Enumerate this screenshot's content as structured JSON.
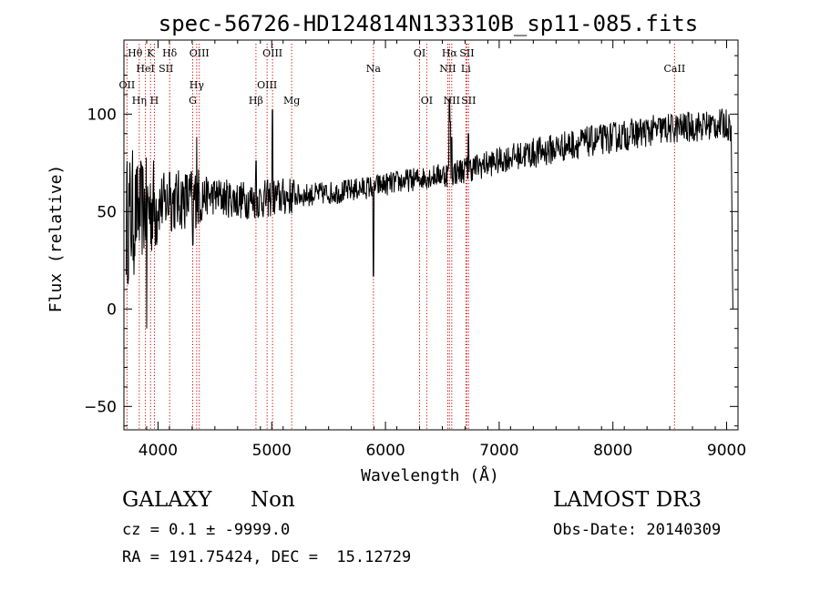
{
  "chart_data": {
    "type": "line",
    "title": "spec-56726-HD124814N133310B_sp11-085.fits",
    "xlabel": "Wavelength (Å)",
    "ylabel": "Flux (relative)",
    "xlim": [
      3700,
      9100
    ],
    "ylim": [
      -62,
      138
    ],
    "xticks": [
      4000,
      5000,
      6000,
      7000,
      8000,
      9000
    ],
    "yticks": [
      -50,
      0,
      50,
      100
    ],
    "grid": false,
    "legend": "none",
    "line_color": "#000000",
    "marker_color": "#cc0000",
    "lines": [
      {
        "label": "OII",
        "x": 3727,
        "row": 3
      },
      {
        "label": "Hθ",
        "x": 3798,
        "row": 1
      },
      {
        "label": "Hη",
        "x": 3835,
        "row": 4
      },
      {
        "label": "HeI",
        "x": 3889,
        "row": 2
      },
      {
        "label": "K",
        "x": 3934,
        "row": 1
      },
      {
        "label": "H",
        "x": 3968,
        "row": 4
      },
      {
        "label": "Hδ",
        "x": 4102,
        "row": 1
      },
      {
        "label": "SII",
        "x": 4070,
        "row": 2
      },
      {
        "label": "Hγ",
        "x": 4340,
        "row": 3
      },
      {
        "label": "G",
        "x": 4305,
        "row": 4
      },
      {
        "label": "OIII",
        "x": 4363,
        "row": 1
      },
      {
        "label": "Hβ",
        "x": 4861,
        "row": 4
      },
      {
        "label": "OIII",
        "x": 4959,
        "row": 3
      },
      {
        "label": "OIII",
        "x": 5007,
        "row": 1
      },
      {
        "label": "Mg",
        "x": 5175,
        "row": 4
      },
      {
        "label": "Na",
        "x": 5894,
        "row": 2
      },
      {
        "label": "OI",
        "x": 6300,
        "row": 1
      },
      {
        "label": "OI",
        "x": 6363,
        "row": 4
      },
      {
        "label": "Hα",
        "x": 6563,
        "row": 1
      },
      {
        "label": "NII",
        "x": 6548,
        "row": 2
      },
      {
        "label": "NII",
        "x": 6583,
        "row": 4
      },
      {
        "label": "SII",
        "x": 6716,
        "row": 1
      },
      {
        "label": "Li",
        "x": 6707,
        "row": 2
      },
      {
        "label": "SII",
        "x": 6731,
        "row": 4
      },
      {
        "label": "CaII",
        "x": 8542,
        "row": 2
      }
    ],
    "line_markers_x": [
      3727,
      3835,
      3889,
      3934,
      3968,
      4102,
      4305,
      4340,
      4363,
      4861,
      4959,
      5007,
      5175,
      5894,
      6300,
      6363,
      6548,
      6563,
      6583,
      6707,
      6716,
      6731,
      8542
    ],
    "continuum": {
      "x": [
        3720,
        3800,
        3900,
        4000,
        4100,
        4200,
        4300,
        4400,
        4500,
        4600,
        4700,
        4800,
        4900,
        5000,
        5200,
        5400,
        5600,
        5800,
        6000,
        6200,
        6400,
        6600,
        6800,
        7000,
        7100,
        7200,
        7400,
        7600,
        7800,
        8000,
        8200,
        8400,
        8600,
        8800,
        9000,
        9060
      ],
      "y": [
        45,
        50,
        52,
        54,
        55,
        56,
        57,
        58,
        58,
        57,
        56,
        56,
        56,
        57,
        58,
        59,
        60,
        62,
        64,
        66,
        68,
        70,
        73,
        76,
        78,
        79,
        81,
        84,
        86,
        88,
        90,
        92,
        93,
        94,
        95,
        92
      ]
    },
    "features": [
      {
        "x": 3900,
        "y": -10
      },
      {
        "x": 4102,
        "y": 70
      },
      {
        "x": 4305,
        "y": 33
      },
      {
        "x": 4340,
        "y": 88
      },
      {
        "x": 4861,
        "y": 76
      },
      {
        "x": 5007,
        "y": 102
      },
      {
        "x": 5015,
        "y": 50
      },
      {
        "x": 5894,
        "y": 17
      },
      {
        "x": 6563,
        "y": 108
      },
      {
        "x": 6570,
        "y": 96
      },
      {
        "x": 6583,
        "y": 88
      },
      {
        "x": 6731,
        "y": 90
      }
    ],
    "endpoints": [
      {
        "x": 9050,
        "y": 25
      },
      {
        "x": 9055,
        "y": 0
      }
    ]
  },
  "info": {
    "class_label": "GALAXY",
    "subclass_label": "Non",
    "survey_label": "LAMOST DR3",
    "cz_line": "cz = 0.1 ± -9999.0",
    "obs_date_line": "Obs-Date: 20140309",
    "coords_line": "RA = 191.75424, DEC =  15.12729"
  }
}
